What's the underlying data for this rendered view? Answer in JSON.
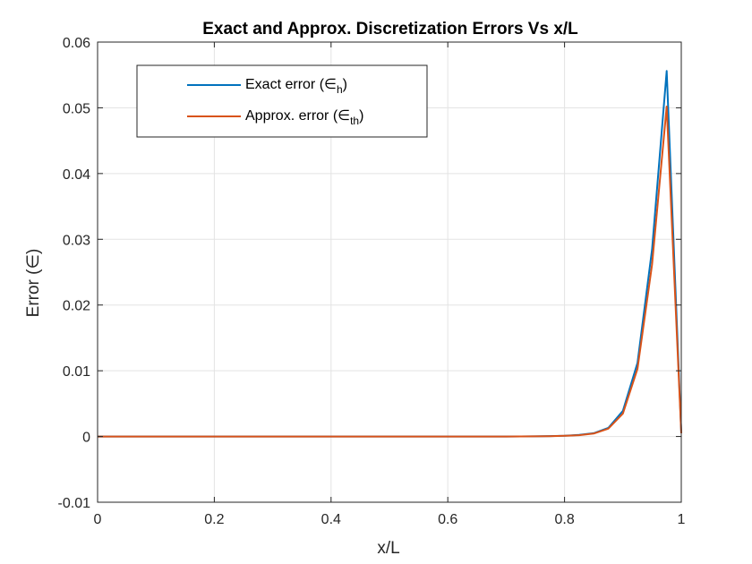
{
  "chart_data": {
    "type": "line",
    "title": "Exact and Approx. Discretization Errors Vs x/L",
    "xlabel": "x/L",
    "ylabel": "Error (∈)",
    "xlim": [
      0,
      1
    ],
    "ylim": [
      -0.01,
      0.06
    ],
    "x_ticks": [
      0,
      0.2,
      0.4,
      0.6,
      0.8,
      1
    ],
    "x_tick_labels": [
      "0",
      "0.2",
      "0.4",
      "0.6",
      "0.8",
      "1"
    ],
    "y_ticks": [
      -0.01,
      0,
      0.01,
      0.02,
      0.03,
      0.04,
      0.05,
      0.06
    ],
    "y_tick_labels": [
      "-0.01",
      "0",
      "0.01",
      "0.02",
      "0.03",
      "0.04",
      "0.05",
      "0.06"
    ],
    "grid": true,
    "legend_position": "top-left",
    "x": [
      0,
      0.05,
      0.1,
      0.15,
      0.2,
      0.25,
      0.3,
      0.35,
      0.4,
      0.45,
      0.5,
      0.55,
      0.6,
      0.65,
      0.7,
      0.725,
      0.75,
      0.775,
      0.8,
      0.825,
      0.85,
      0.875,
      0.9,
      0.925,
      0.95,
      0.975,
      1
    ],
    "series": [
      {
        "name_main": "Exact error (∈",
        "name_sub": "h",
        "name_tail": ")",
        "color": "#0072BD",
        "values": [
          0,
          0,
          0,
          0,
          0,
          0,
          0,
          0,
          0,
          0,
          0,
          0,
          0,
          0,
          0,
          1e-05,
          3e-05,
          6e-05,
          0.00012,
          0.00024,
          0.0005,
          0.0013,
          0.0039,
          0.0112,
          0.0285,
          0.0556,
          0.0005
        ]
      },
      {
        "name_main": "Approx. error (∈",
        "name_sub": "th",
        "name_tail": ")",
        "color": "#D95319",
        "values": [
          0,
          0,
          0,
          0,
          0,
          0,
          0,
          0,
          0,
          0,
          0,
          0,
          0,
          0,
          0,
          1e-05,
          3e-05,
          5e-05,
          0.0001,
          0.0002,
          0.00045,
          0.0012,
          0.0035,
          0.0103,
          0.0262,
          0.0502,
          0.0005
        ]
      }
    ]
  }
}
